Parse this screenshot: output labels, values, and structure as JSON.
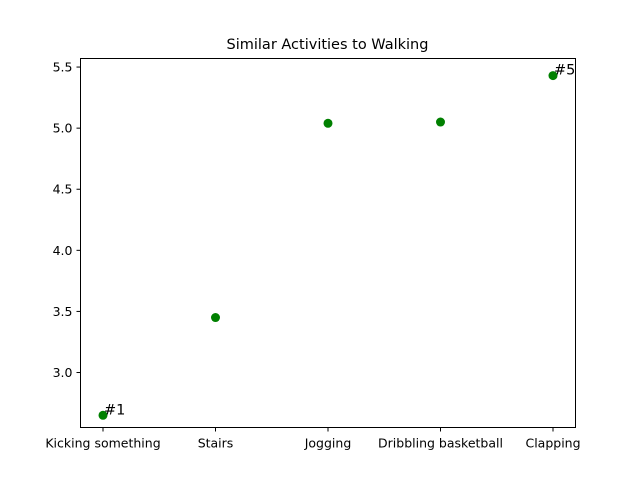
{
  "chart_data": {
    "type": "scatter",
    "title": "Similar Activities to Walking",
    "xlabel": "",
    "ylabel": "",
    "categories": [
      "Kicking something",
      "Stairs",
      "Jogging",
      "Dribbling basketball",
      "Clapping"
    ],
    "values": [
      2.65,
      3.45,
      5.04,
      5.05,
      5.43
    ],
    "ylim": [
      2.55,
      5.57
    ],
    "yticks": [
      "3.0",
      "3.5",
      "4.0",
      "4.5",
      "5.0",
      "5.5"
    ],
    "marker_color": "#008000",
    "annotations": [
      {
        "text": "#1",
        "index": 0
      },
      {
        "text": "#5",
        "index": 4
      }
    ],
    "grid": false,
    "legend": "none"
  }
}
